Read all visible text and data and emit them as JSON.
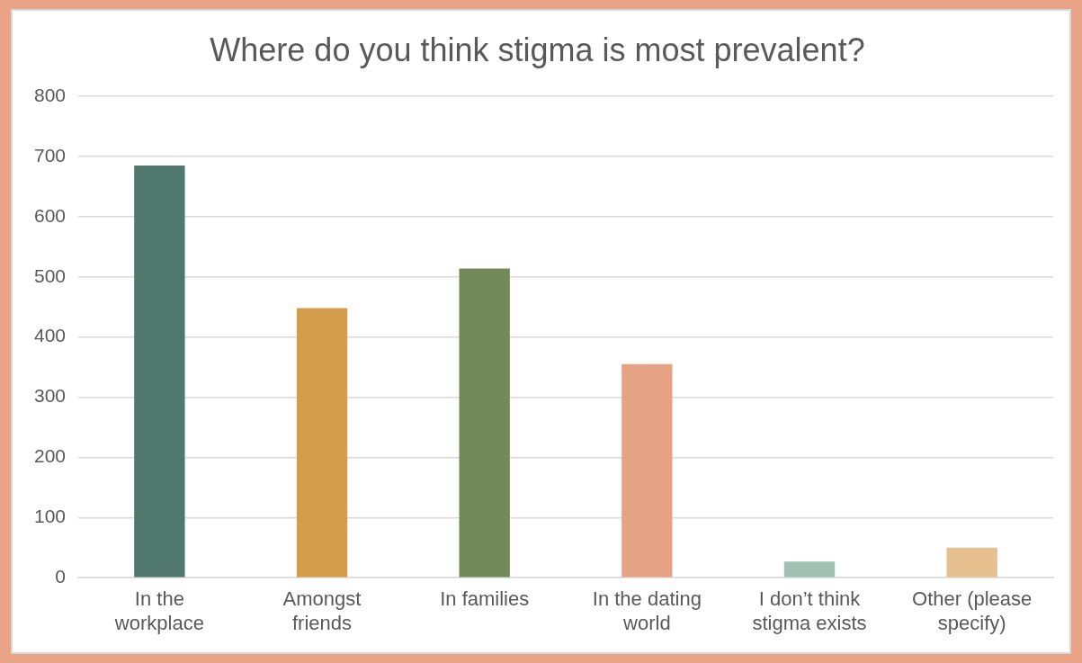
{
  "chart_data": {
    "type": "bar",
    "title": "Where do you think stigma is most prevalent?",
    "categories": [
      "In the workplace",
      "Amongst friends",
      "In families",
      "In the dating world",
      "I don’t think stigma exists",
      "Other (please specify)"
    ],
    "values": [
      685,
      448,
      514,
      355,
      27,
      50
    ],
    "colors": [
      "#50786c",
      "#d39d4c",
      "#728a5a",
      "#e6a285",
      "#9fc0b2",
      "#e6c08f"
    ],
    "ylim": [
      0,
      800
    ],
    "yticks": [
      0,
      100,
      200,
      300,
      400,
      500,
      600,
      700,
      800
    ],
    "grid": "y",
    "legend": false
  }
}
